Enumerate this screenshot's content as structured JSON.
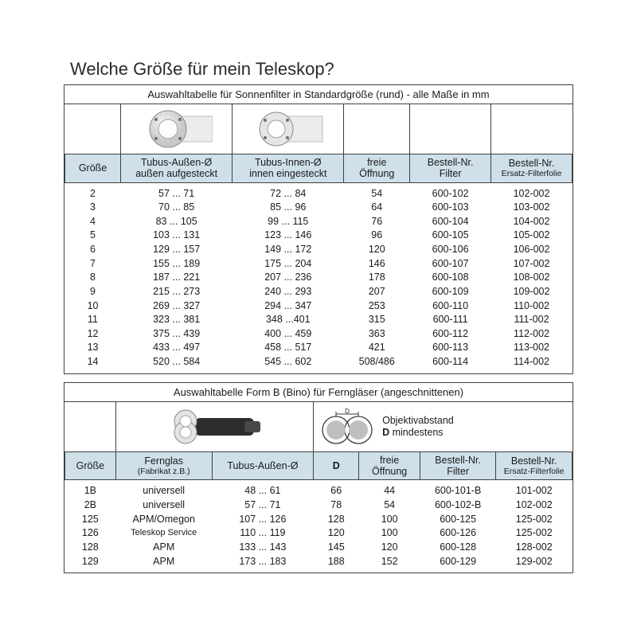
{
  "title": "Welche Größe für mein Teleskop?",
  "table1": {
    "caption": "Auswahltabelle für Sonnenfilter in Standardgröße (rund) - alle Maße in mm",
    "columns": {
      "c1": {
        "l1": "Größe"
      },
      "c2": {
        "l1": "Tubus-Außen-Ø",
        "l2": "außen aufgesteckt"
      },
      "c3": {
        "l1": "Tubus-Innen-Ø",
        "l2": "innen eingesteckt"
      },
      "c4": {
        "l1": "freie",
        "l2": "Öffnung"
      },
      "c5": {
        "l1": "Bestell-Nr.",
        "l2": "Filter"
      },
      "c6": {
        "l1": "Bestell-Nr.",
        "l2": "Ersatz-Filterfolie"
      }
    },
    "rows": [
      {
        "size": "2",
        "outer": "57 ... 71",
        "inner": "72 ... 84",
        "open": "54",
        "order": "600-102",
        "foil": "102-002"
      },
      {
        "size": "3",
        "outer": "70 ... 85",
        "inner": "85 ... 96",
        "open": "64",
        "order": "600-103",
        "foil": "103-002"
      },
      {
        "size": "4",
        "outer": "83 ... 105",
        "inner": "99 ... 115",
        "open": "76",
        "order": "600-104",
        "foil": "104-002"
      },
      {
        "size": "5",
        "outer": "103 ... 131",
        "inner": "123 ... 146",
        "open": "96",
        "order": "600-105",
        "foil": "105-002"
      },
      {
        "size": "6",
        "outer": "129 ... 157",
        "inner": "149 ... 172",
        "open": "120",
        "order": "600-106",
        "foil": "106-002"
      },
      {
        "size": "7",
        "outer": "155 ... 189",
        "inner": "175 ... 204",
        "open": "146",
        "order": "600-107",
        "foil": "107-002"
      },
      {
        "size": "8",
        "outer": "187 ... 221",
        "inner": "207 ... 236",
        "open": "178",
        "order": "600-108",
        "foil": "108-002"
      },
      {
        "size": "9",
        "outer": "215 ... 273",
        "inner": "240 ... 293",
        "open": "207",
        "order": "600-109",
        "foil": "109-002"
      },
      {
        "size": "10",
        "outer": "269 ... 327",
        "inner": "294 ... 347",
        "open": "253",
        "order": "600-110",
        "foil": "110-002"
      },
      {
        "size": "11",
        "outer": "323 ... 381",
        "inner": "348 ...401",
        "open": "315",
        "order": "600-111",
        "foil": "111-002"
      },
      {
        "size": "12",
        "outer": "375 ... 439",
        "inner": "400 ... 459",
        "open": "363",
        "order": "600-112",
        "foil": "112-002"
      },
      {
        "size": "13",
        "outer": "433 ... 497",
        "inner": "458 ... 517",
        "open": "421",
        "order": "600-113",
        "foil": "113-002"
      },
      {
        "size": "14",
        "outer": "520 ... 584",
        "inner": "545 ... 602",
        "open": "508/486",
        "order": "600-114",
        "foil": "114-002"
      }
    ]
  },
  "table2": {
    "caption": "Auswahltabelle Form B (Bino) für Ferngläser  (angeschnittenen)",
    "dist_label_1": "Objektivabstand",
    "dist_label_2": "D mindestens",
    "columns": {
      "c1": {
        "l1": "Größe"
      },
      "c2": {
        "l1": "Fernglas",
        "l2": "(Fabrikat z.B.)"
      },
      "c3": {
        "l1": "Tubus-Außen-Ø"
      },
      "c4": {
        "l1": "D"
      },
      "c5": {
        "l1": "freie",
        "l2": "Öffnung"
      },
      "c6": {
        "l1": "Bestell-Nr.",
        "l2": "Filter"
      },
      "c7": {
        "l1": "Bestell-Nr.",
        "l2": "Ersatz-Filterfolie"
      }
    },
    "rows": [
      {
        "size": "1B",
        "brand": "universell",
        "outer": "48 ... 61",
        "d": "66",
        "open": "44",
        "order": "600-101-B",
        "foil": "101-002"
      },
      {
        "size": "2B",
        "brand": "universell",
        "outer": "57 ... 71",
        "d": "78",
        "open": "54",
        "order": "600-102-B",
        "foil": "102-002"
      },
      {
        "size": "125",
        "brand": "APM/Omegon",
        "outer": "107 ... 126",
        "d": "128",
        "open": "100",
        "order": "600-125",
        "foil": "125-002"
      },
      {
        "size": "126",
        "brand": "Teleskop Service",
        "outer": "110 ... 119",
        "d": "120",
        "open": "100",
        "order": "600-126",
        "foil": "125-002"
      },
      {
        "size": "128",
        "brand": "APM",
        "outer": "133 ... 143",
        "d": "145",
        "open": "120",
        "order": "600-128",
        "foil": "128-002"
      },
      {
        "size": "129",
        "brand": "APM",
        "outer": "173 ... 183",
        "d": "188",
        "open": "152",
        "order": "600-129",
        "foil": "129-002"
      }
    ]
  },
  "colors": {
    "header_bg": "#cfe0ea",
    "border": "#404040",
    "text": "#1a1a1a"
  }
}
